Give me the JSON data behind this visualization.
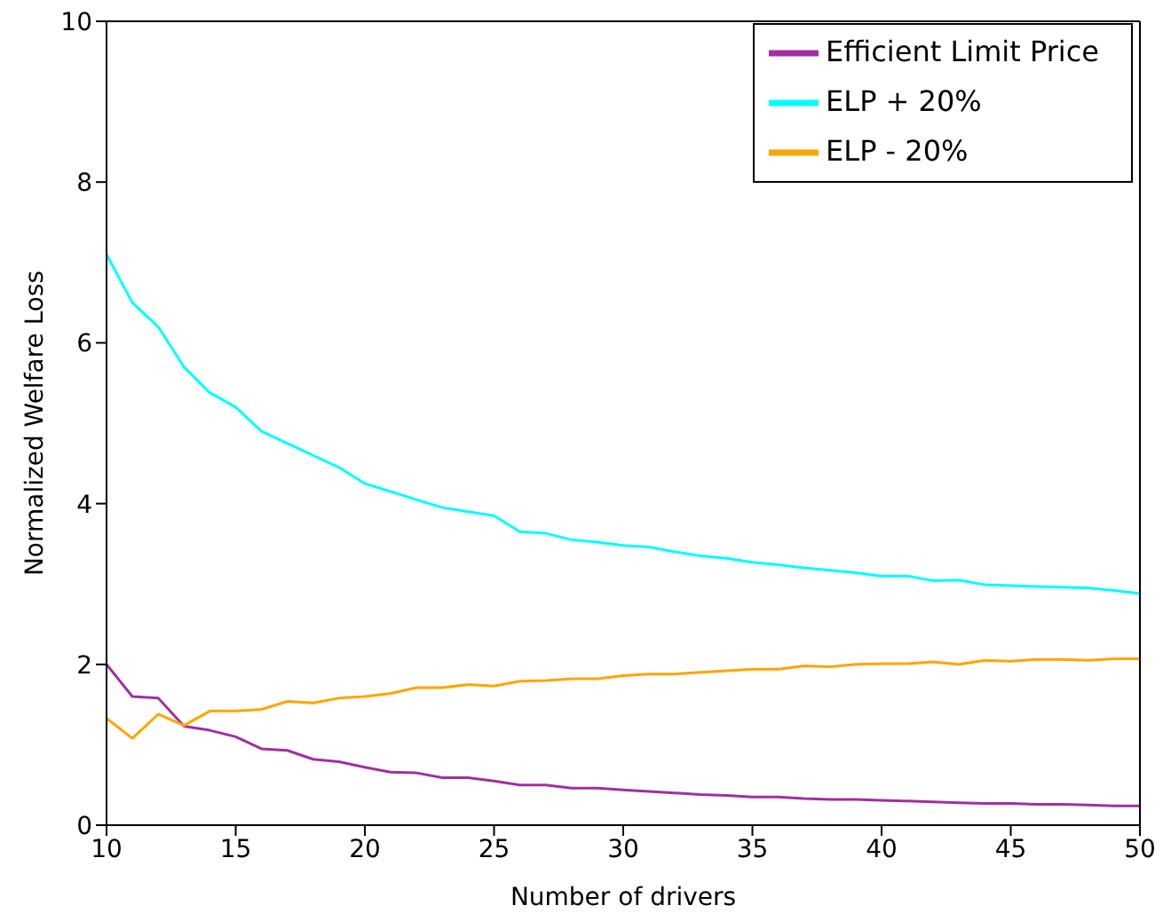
{
  "chart_data": {
    "type": "line",
    "xlabel": "Number of drivers",
    "ylabel": "Normalized Welfare Loss",
    "x": [
      10,
      11,
      12,
      13,
      14,
      15,
      16,
      17,
      18,
      19,
      20,
      21,
      22,
      23,
      24,
      25,
      26,
      27,
      28,
      29,
      30,
      31,
      32,
      33,
      34,
      35,
      36,
      37,
      38,
      39,
      40,
      41,
      42,
      43,
      44,
      45,
      46,
      47,
      48,
      49,
      50
    ],
    "series": [
      {
        "name": "Efficient Limit Price",
        "color": "#a030a0",
        "values": [
          2.0,
          1.6,
          1.58,
          1.23,
          1.18,
          1.1,
          0.95,
          0.93,
          0.82,
          0.79,
          0.72,
          0.66,
          0.65,
          0.59,
          0.59,
          0.55,
          0.5,
          0.5,
          0.46,
          0.46,
          0.44,
          0.42,
          0.4,
          0.38,
          0.37,
          0.35,
          0.35,
          0.33,
          0.32,
          0.32,
          0.31,
          0.3,
          0.29,
          0.28,
          0.27,
          0.27,
          0.26,
          0.26,
          0.25,
          0.24,
          0.24
        ]
      },
      {
        "name": "ELP + 20%",
        "color": "#00ffff",
        "values": [
          7.1,
          6.5,
          6.2,
          5.7,
          5.38,
          5.2,
          4.9,
          4.75,
          4.6,
          4.45,
          4.25,
          4.15,
          4.05,
          3.95,
          3.9,
          3.85,
          3.65,
          3.63,
          3.55,
          3.52,
          3.48,
          3.46,
          3.4,
          3.35,
          3.32,
          3.27,
          3.24,
          3.2,
          3.17,
          3.14,
          3.1,
          3.1,
          3.04,
          3.05,
          2.99,
          2.98,
          2.97,
          2.96,
          2.95,
          2.92,
          2.88
        ]
      },
      {
        "name": "ELP - 20%",
        "color": "#ffa500",
        "values": [
          1.33,
          1.08,
          1.38,
          1.24,
          1.42,
          1.42,
          1.44,
          1.54,
          1.52,
          1.58,
          1.6,
          1.64,
          1.71,
          1.71,
          1.75,
          1.73,
          1.79,
          1.8,
          1.82,
          1.82,
          1.86,
          1.88,
          1.88,
          1.9,
          1.92,
          1.94,
          1.94,
          1.98,
          1.97,
          2.0,
          2.01,
          2.01,
          2.03,
          2.0,
          2.05,
          2.04,
          2.06,
          2.06,
          2.05,
          2.07,
          2.07
        ]
      }
    ],
    "xlim": [
      10,
      50
    ],
    "xticks": [
      10,
      15,
      20,
      25,
      30,
      35,
      40,
      45,
      50
    ],
    "ylim": [
      0,
      10
    ],
    "yticks": [
      0,
      2,
      4,
      6,
      8,
      10
    ],
    "grid": false,
    "legend": "top right",
    "marker": "none",
    "line_style": "solid"
  }
}
